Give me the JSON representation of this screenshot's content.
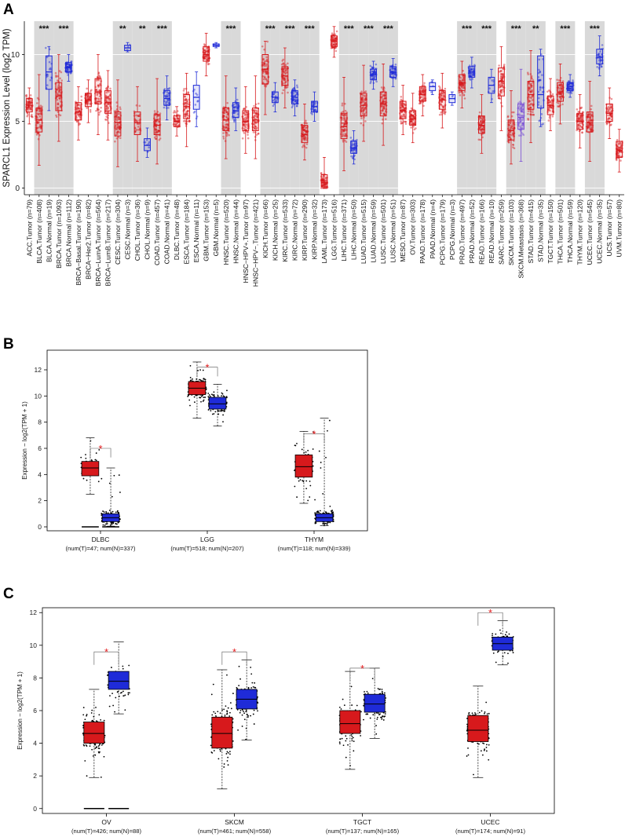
{
  "colors": {
    "tumor": "#d7191c",
    "normal": "#1f2bd8",
    "metastasis": "#7b4fd6",
    "stripe": "#d9d9d9",
    "star": "#e41a1c"
  },
  "chart_data": [
    {
      "type": "box",
      "panel": "A",
      "ylabel": "SPARCL1 Expression Level (log2 TPM)",
      "ylim": [
        -0.5,
        12.5
      ],
      "yticks": [
        0,
        5,
        10
      ],
      "categories": [
        {
          "label": "ACC.Tumor (n=79)",
          "kind": "tumor",
          "median": 6.2,
          "q1": 5.7,
          "q3": 6.7,
          "lo": 4.8,
          "hi": 7.5,
          "stripe": false,
          "sig": ""
        },
        {
          "label": "BLCA.Tumor (n=408)",
          "kind": "tumor",
          "median": 5.1,
          "q1": 4.2,
          "q3": 6.0,
          "lo": 1.7,
          "hi": 8.5,
          "stripe": true,
          "sig": "***"
        },
        {
          "label": "BLCA.Normal (n=19)",
          "kind": "normal",
          "median": 8.7,
          "q1": 7.4,
          "q3": 9.9,
          "lo": 5.8,
          "hi": 10.6,
          "stripe": true,
          "sig": ""
        },
        {
          "label": "BRCA.Tumor (n=1093)",
          "kind": "tumor",
          "median": 6.9,
          "q1": 5.8,
          "q3": 7.9,
          "lo": 3.5,
          "hi": 10.0,
          "stripe": true,
          "sig": "***"
        },
        {
          "label": "BRCA.Normal (n=112)",
          "kind": "normal",
          "median": 9.0,
          "q1": 8.7,
          "q3": 9.4,
          "lo": 8.0,
          "hi": 10.0,
          "stripe": true,
          "sig": ""
        },
        {
          "label": "BRCA−Basal.Tumor (n=190)",
          "kind": "tumor",
          "median": 5.7,
          "q1": 5.1,
          "q3": 6.4,
          "lo": 3.6,
          "hi": 7.6,
          "stripe": false,
          "sig": ""
        },
        {
          "label": "BRCA−Her2.Tumor (n=82)",
          "kind": "tumor",
          "median": 6.6,
          "q1": 6.1,
          "q3": 7.1,
          "lo": 4.9,
          "hi": 8.1,
          "stripe": false,
          "sig": ""
        },
        {
          "label": "BRCA−LumA.Tumor (n=564)",
          "kind": "tumor",
          "median": 7.2,
          "q1": 6.3,
          "q3": 8.2,
          "lo": 4.0,
          "hi": 10.0,
          "stripe": false,
          "sig": ""
        },
        {
          "label": "BRCA−LumB.Tumor (n=217)",
          "kind": "tumor",
          "median": 6.4,
          "q1": 5.6,
          "q3": 7.3,
          "lo": 3.6,
          "hi": 8.8,
          "stripe": false,
          "sig": ""
        },
        {
          "label": "CESC.Tumor (n=304)",
          "kind": "tumor",
          "median": 4.9,
          "q1": 3.9,
          "q3": 5.7,
          "lo": 1.6,
          "hi": 8.1,
          "stripe": true,
          "sig": "**"
        },
        {
          "label": "CESC.Normal (n=3)",
          "kind": "normal",
          "median": 10.5,
          "q1": 10.3,
          "q3": 10.7,
          "lo": 10.2,
          "hi": 10.9,
          "stripe": true,
          "sig": ""
        },
        {
          "label": "CHOL.Tumor (n=36)",
          "kind": "tumor",
          "median": 4.9,
          "q1": 4.0,
          "q3": 5.7,
          "lo": 2.0,
          "hi": 7.6,
          "stripe": true,
          "sig": "**"
        },
        {
          "label": "CHOL.Normal (n=9)",
          "kind": "normal",
          "median": 3.2,
          "q1": 2.8,
          "q3": 3.7,
          "lo": 2.3,
          "hi": 4.5,
          "stripe": true,
          "sig": ""
        },
        {
          "label": "COAD.Tumor (n=457)",
          "kind": "tumor",
          "median": 4.7,
          "q1": 4.0,
          "q3": 5.5,
          "lo": 1.8,
          "hi": 8.2,
          "stripe": true,
          "sig": "***"
        },
        {
          "label": "COAD.Normal (n=41)",
          "kind": "normal",
          "median": 6.7,
          "q1": 6.2,
          "q3": 7.3,
          "lo": 5.1,
          "hi": 8.4,
          "stripe": true,
          "sig": ""
        },
        {
          "label": "DLBC.Tumor (n=48)",
          "kind": "tumor",
          "median": 5.0,
          "q1": 4.6,
          "q3": 5.4,
          "lo": 3.9,
          "hi": 6.1,
          "stripe": false,
          "sig": ""
        },
        {
          "label": "ESCA.Tumor (n=184)",
          "kind": "tumor",
          "median": 6.1,
          "q1": 5.2,
          "q3": 7.0,
          "lo": 3.1,
          "hi": 8.6,
          "stripe": false,
          "sig": ""
        },
        {
          "label": "ESCA.Normal (n=11)",
          "kind": "normal",
          "median": 6.8,
          "q1": 5.9,
          "q3": 7.7,
          "lo": 4.6,
          "hi": 8.7,
          "stripe": false,
          "sig": ""
        },
        {
          "label": "GBM.Tumor (n=153)",
          "kind": "tumor",
          "median": 10.0,
          "q1": 9.5,
          "q3": 10.6,
          "lo": 8.4,
          "hi": 11.6,
          "stripe": false,
          "sig": ""
        },
        {
          "label": "GBM.Normal (n=5)",
          "kind": "normal",
          "median": 10.7,
          "q1": 10.6,
          "q3": 10.8,
          "lo": 10.5,
          "hi": 10.9,
          "stripe": false,
          "sig": ""
        },
        {
          "label": "HNSC.Tumor (n=520)",
          "kind": "tumor",
          "median": 5.1,
          "q1": 4.3,
          "q3": 6.0,
          "lo": 2.2,
          "hi": 8.4,
          "stripe": true,
          "sig": "***"
        },
        {
          "label": "HNSC.Normal (n=44)",
          "kind": "normal",
          "median": 5.8,
          "q1": 5.3,
          "q3": 6.4,
          "lo": 4.3,
          "hi": 7.5,
          "stripe": true,
          "sig": ""
        },
        {
          "label": "HNSC−HPV+.Tumor (n=97)",
          "kind": "tumor",
          "median": 5.0,
          "q1": 4.3,
          "q3": 5.8,
          "lo": 2.6,
          "hi": 7.6,
          "stripe": false,
          "sig": ""
        },
        {
          "label": "HNSC−HPV−.Tumor (n=421)",
          "kind": "tumor",
          "median": 5.1,
          "q1": 4.3,
          "q3": 6.0,
          "lo": 2.2,
          "hi": 8.4,
          "stripe": false,
          "sig": ""
        },
        {
          "label": "KICH.Tumor (n=66)",
          "kind": "tumor",
          "median": 8.9,
          "q1": 7.8,
          "q3": 10.0,
          "lo": 5.5,
          "hi": 11.0,
          "stripe": true,
          "sig": "***"
        },
        {
          "label": "KICH.Normal (n=25)",
          "kind": "normal",
          "median": 6.8,
          "q1": 6.4,
          "q3": 7.2,
          "lo": 5.7,
          "hi": 7.9,
          "stripe": true,
          "sig": ""
        },
        {
          "label": "KIRC.Tumor (n=533)",
          "kind": "tumor",
          "median": 8.4,
          "q1": 7.7,
          "q3": 9.1,
          "lo": 6.0,
          "hi": 10.5,
          "stripe": true,
          "sig": "***"
        },
        {
          "label": "KIRC.Normal (n=72)",
          "kind": "normal",
          "median": 6.8,
          "q1": 6.3,
          "q3": 7.3,
          "lo": 5.4,
          "hi": 8.1,
          "stripe": true,
          "sig": ""
        },
        {
          "label": "KIRP.Tumor (n=290)",
          "kind": "tumor",
          "median": 4.0,
          "q1": 3.4,
          "q3": 4.7,
          "lo": 2.1,
          "hi": 6.3,
          "stripe": true,
          "sig": "***"
        },
        {
          "label": "KIRP.Normal (n=32)",
          "kind": "normal",
          "median": 6.1,
          "q1": 5.7,
          "q3": 6.5,
          "lo": 5.0,
          "hi": 7.2,
          "stripe": true,
          "sig": ""
        },
        {
          "label": "LAML.Tumor (n=173)",
          "kind": "tumor",
          "median": 0.4,
          "q1": 0.1,
          "q3": 1.0,
          "lo": 0.0,
          "hi": 2.3,
          "stripe": false,
          "sig": ""
        },
        {
          "label": "LGG.Tumor (n=516)",
          "kind": "tumor",
          "median": 11.0,
          "q1": 10.6,
          "q3": 11.4,
          "lo": 9.8,
          "hi": 12.1,
          "stripe": false,
          "sig": ""
        },
        {
          "label": "LIHC.Tumor (n=371)",
          "kind": "tumor",
          "median": 4.6,
          "q1": 3.7,
          "q3": 5.6,
          "lo": 1.3,
          "hi": 8.3,
          "stripe": true,
          "sig": "***"
        },
        {
          "label": "LIHC.Normal (n=50)",
          "kind": "normal",
          "median": 3.0,
          "q1": 2.6,
          "q3": 3.5,
          "lo": 1.8,
          "hi": 4.3,
          "stripe": true,
          "sig": ""
        },
        {
          "label": "LUAD.Tumor (n=515)",
          "kind": "tumor",
          "median": 6.2,
          "q1": 5.4,
          "q3": 7.1,
          "lo": 3.5,
          "hi": 9.2,
          "stripe": true,
          "sig": "***"
        },
        {
          "label": "LUAD.Normal (n=59)",
          "kind": "normal",
          "median": 8.5,
          "q1": 8.1,
          "q3": 8.9,
          "lo": 7.4,
          "hi": 9.5,
          "stripe": true,
          "sig": ""
        },
        {
          "label": "LUSC.Tumor (n=501)",
          "kind": "tumor",
          "median": 6.3,
          "q1": 5.4,
          "q3": 7.2,
          "lo": 3.2,
          "hi": 9.3,
          "stripe": true,
          "sig": "***"
        },
        {
          "label": "LUSC.Normal (n=51)",
          "kind": "normal",
          "median": 8.7,
          "q1": 8.3,
          "q3": 9.1,
          "lo": 7.6,
          "hi": 9.7,
          "stripe": true,
          "sig": ""
        },
        {
          "label": "MESO.Tumor (n=87)",
          "kind": "tumor",
          "median": 5.8,
          "q1": 5.2,
          "q3": 6.5,
          "lo": 4.0,
          "hi": 7.7,
          "stripe": false,
          "sig": ""
        },
        {
          "label": "OV.Tumor (n=303)",
          "kind": "tumor",
          "median": 5.2,
          "q1": 4.7,
          "q3": 5.8,
          "lo": 3.4,
          "hi": 7.1,
          "stripe": false,
          "sig": ""
        },
        {
          "label": "PAAD.Tumor (n=178)",
          "kind": "tumor",
          "median": 7.0,
          "q1": 6.5,
          "q3": 7.6,
          "lo": 5.4,
          "hi": 8.5,
          "stripe": false,
          "sig": ""
        },
        {
          "label": "PAAD.Normal (n=4)",
          "kind": "normal",
          "median": 7.6,
          "q1": 7.3,
          "q3": 7.9,
          "lo": 7.0,
          "hi": 8.1,
          "stripe": false,
          "sig": ""
        },
        {
          "label": "PCPG.Tumor (n=179)",
          "kind": "tumor",
          "median": 6.6,
          "q1": 5.9,
          "q3": 7.3,
          "lo": 4.5,
          "hi": 8.6,
          "stripe": false,
          "sig": ""
        },
        {
          "label": "PCPG.Normal (n=3)",
          "kind": "normal",
          "median": 6.7,
          "q1": 6.4,
          "q3": 7.0,
          "lo": 6.2,
          "hi": 7.2,
          "stripe": false,
          "sig": ""
        },
        {
          "label": "PRAD.Tumor (n=497)",
          "kind": "tumor",
          "median": 7.9,
          "q1": 7.3,
          "q3": 8.5,
          "lo": 6.0,
          "hi": 9.5,
          "stripe": true,
          "sig": "***"
        },
        {
          "label": "PRAD.Normal (n=52)",
          "kind": "normal",
          "median": 8.7,
          "q1": 8.3,
          "q3": 9.1,
          "lo": 7.5,
          "hi": 9.8,
          "stripe": true,
          "sig": ""
        },
        {
          "label": "READ.Tumor (n=166)",
          "kind": "tumor",
          "median": 4.7,
          "q1": 4.1,
          "q3": 5.4,
          "lo": 2.6,
          "hi": 7.0,
          "stripe": true,
          "sig": "***"
        },
        {
          "label": "READ.Normal (n=10)",
          "kind": "normal",
          "median": 7.7,
          "q1": 7.1,
          "q3": 8.3,
          "lo": 6.4,
          "hi": 8.9,
          "stripe": true,
          "sig": ""
        },
        {
          "label": "SARC.Tumor (n=259)",
          "kind": "tumor",
          "median": 8.0,
          "q1": 6.9,
          "q3": 9.0,
          "lo": 4.3,
          "hi": 10.6,
          "stripe": false,
          "sig": ""
        },
        {
          "label": "SKCM.Tumor (n=103)",
          "kind": "tumor",
          "median": 4.3,
          "q1": 3.6,
          "q3": 5.1,
          "lo": 1.8,
          "hi": 7.3,
          "stripe": true,
          "sig": "***"
        },
        {
          "label": "SKCM.Metastasis (n=368)",
          "kind": "metastasis",
          "median": 5.3,
          "q1": 4.4,
          "q3": 6.3,
          "lo": 2.0,
          "hi": 8.9,
          "stripe": true,
          "sig": ""
        },
        {
          "label": "STAD.Tumor (n=415)",
          "kind": "tumor",
          "median": 7.0,
          "q1": 5.9,
          "q3": 8.0,
          "lo": 3.4,
          "hi": 10.3,
          "stripe": true,
          "sig": "**"
        },
        {
          "label": "STAD.Normal (n=35)",
          "kind": "normal",
          "median": 7.0,
          "q1": 6.0,
          "q3": 9.9,
          "lo": 4.6,
          "hi": 10.4,
          "stripe": true,
          "sig": ""
        },
        {
          "label": "TGCT.Tumor (n=150)",
          "kind": "tumor",
          "median": 6.2,
          "q1": 5.5,
          "q3": 6.9,
          "lo": 4.3,
          "hi": 8.2,
          "stripe": false,
          "sig": ""
        },
        {
          "label": "THCA.Tumor (n=501)",
          "kind": "tumor",
          "median": 7.2,
          "q1": 6.5,
          "q3": 7.9,
          "lo": 4.8,
          "hi": 9.3,
          "stripe": true,
          "sig": "***"
        },
        {
          "label": "THCA.Normal (n=59)",
          "kind": "normal",
          "median": 7.6,
          "q1": 7.3,
          "q3": 7.9,
          "lo": 6.8,
          "hi": 8.5,
          "stripe": true,
          "sig": ""
        },
        {
          "label": "THYM.Tumor (n=120)",
          "kind": "tumor",
          "median": 5.0,
          "q1": 4.4,
          "q3": 5.6,
          "lo": 3.0,
          "hi": 7.0,
          "stripe": false,
          "sig": ""
        },
        {
          "label": "UCEC.Tumor (n=545)",
          "kind": "tumor",
          "median": 4.9,
          "q1": 4.2,
          "q3": 5.7,
          "lo": 2.0,
          "hi": 8.0,
          "stripe": true,
          "sig": "***"
        },
        {
          "label": "UCEC.Normal (n=35)",
          "kind": "normal",
          "median": 9.8,
          "q1": 9.3,
          "q3": 10.4,
          "lo": 8.4,
          "hi": 11.4,
          "stripe": true,
          "sig": ""
        },
        {
          "label": "UCS.Tumor (n=57)",
          "kind": "tumor",
          "median": 5.6,
          "q1": 5.0,
          "q3": 6.3,
          "lo": 3.7,
          "hi": 7.5,
          "stripe": false,
          "sig": ""
        },
        {
          "label": "UVM.Tumor (n=80)",
          "kind": "tumor",
          "median": 2.8,
          "q1": 2.3,
          "q3": 3.5,
          "lo": 1.2,
          "hi": 4.4,
          "stripe": false,
          "sig": ""
        }
      ]
    },
    {
      "type": "box",
      "panel": "B",
      "ylabel": "Expression − log2(TPM + 1)",
      "ylim": [
        -0.3,
        13.5
      ],
      "yticks": [
        0,
        2,
        4,
        6,
        8,
        10,
        12
      ],
      "groups": [
        {
          "name": "DLBC",
          "sub": "(num(T)=47; num(N)=337)",
          "tumor": {
            "median": 4.5,
            "q1": 3.9,
            "q3": 5.0,
            "lo": 2.5,
            "hi": 6.8,
            "zero": true
          },
          "normal": {
            "median": 0.7,
            "q1": 0.4,
            "q3": 1.0,
            "lo": 0.05,
            "hi": 4.5,
            "zero": true
          },
          "star": {
            "y": 5.3,
            "top": 6.0
          }
        },
        {
          "name": "LGG",
          "sub": "(num(T)=518; num(N)=207)",
          "tumor": {
            "median": 10.6,
            "q1": 10.1,
            "q3": 11.1,
            "lo": 8.3,
            "hi": 12.6,
            "zero": false
          },
          "normal": {
            "median": 9.4,
            "q1": 9.0,
            "q3": 9.9,
            "lo": 7.7,
            "hi": 10.9,
            "zero": false
          },
          "star": {
            "y": 11.5,
            "top": 12.2
          }
        },
        {
          "name": "THYM",
          "sub": "(num(T)=118; num(N)=339)",
          "tumor": {
            "median": 4.6,
            "q1": 3.8,
            "q3": 5.5,
            "lo": 1.8,
            "hi": 7.3,
            "zero": false
          },
          "normal": {
            "median": 0.7,
            "q1": 0.4,
            "q3": 1.0,
            "lo": 0.1,
            "hi": 8.3,
            "zero": false
          },
          "star": {
            "y": 6.4,
            "top": 7.1
          }
        }
      ]
    },
    {
      "type": "box",
      "panel": "C",
      "ylabel": "Expression − log2(TPM + 1)",
      "ylim": [
        -0.3,
        12.3
      ],
      "yticks": [
        0,
        2,
        4,
        6,
        8,
        10,
        12
      ],
      "groups": [
        {
          "name": "OV",
          "sub": "(num(T)=426; num(N)=88)",
          "tumor": {
            "median": 4.6,
            "q1": 4.0,
            "q3": 5.3,
            "lo": 1.9,
            "hi": 7.3,
            "zero": true
          },
          "normal": {
            "median": 7.8,
            "q1": 7.3,
            "q3": 8.4,
            "lo": 5.8,
            "hi": 10.2,
            "zero": true
          },
          "star": {
            "y": 8.8,
            "top": 9.6
          }
        },
        {
          "name": "SKCM",
          "sub": "(num(T)=461; num(N)=558)",
          "tumor": {
            "median": 4.6,
            "q1": 3.7,
            "q3": 5.6,
            "lo": 1.2,
            "hi": 8.5,
            "zero": false
          },
          "normal": {
            "median": 6.7,
            "q1": 6.1,
            "q3": 7.3,
            "lo": 4.2,
            "hi": 9.1,
            "zero": false
          },
          "star": {
            "y": 8.8,
            "top": 9.6
          }
        },
        {
          "name": "TGCT",
          "sub": "(num(T)=137; num(N)=165)",
          "tumor": {
            "median": 5.2,
            "q1": 4.6,
            "q3": 6.0,
            "lo": 2.4,
            "hi": 8.4,
            "zero": false
          },
          "normal": {
            "median": 6.4,
            "q1": 5.9,
            "q3": 7.0,
            "lo": 4.3,
            "hi": 8.6,
            "zero": false
          },
          "star": {
            "y": 7.8,
            "top": 8.6
          }
        },
        {
          "name": "UCEC",
          "sub": "(num(T)=174; num(N)=91)",
          "tumor": {
            "median": 4.8,
            "q1": 4.1,
            "q3": 5.7,
            "lo": 1.9,
            "hi": 7.5,
            "zero": false
          },
          "normal": {
            "median": 10.1,
            "q1": 9.7,
            "q3": 10.5,
            "lo": 8.8,
            "hi": 11.5,
            "zero": false
          },
          "star": {
            "y": 11.2,
            "top": 12.0
          }
        }
      ]
    }
  ],
  "panel_letters": [
    "A",
    "B",
    "C"
  ]
}
